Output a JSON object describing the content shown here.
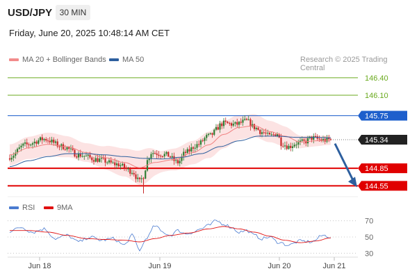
{
  "header": {
    "pair": "USD/JPY",
    "timeframe": "30 MIN",
    "datetime": "Friday, June 20, 2025 10:48:14 AM CET"
  },
  "legend": {
    "items": [
      {
        "label": "MA 20 + Bollinger Bands",
        "color": "#f28b8b"
      },
      {
        "label": "MA 50",
        "color": "#2d5f9e"
      }
    ],
    "credit": "Research © 2025 Trading Central"
  },
  "rsi_legend": {
    "items": [
      {
        "label": "RSI",
        "color": "#4a7bd0"
      },
      {
        "label": "9MA",
        "color": "#e01010"
      }
    ]
  },
  "chart_data": [
    {
      "type": "candlestick",
      "ylim": [
        144.4,
        146.6
      ],
      "x_ticks": [
        "Jun 18",
        "Jun 19",
        "Jun 20",
        "Jun 21"
      ],
      "last_price": 145.34,
      "levels": [
        {
          "value": 146.4,
          "label": "146.40",
          "kind": "target"
        },
        {
          "value": 146.1,
          "label": "146.10",
          "kind": "target"
        },
        {
          "value": 145.75,
          "label": "145.75",
          "kind": "pivot"
        },
        {
          "value": 144.85,
          "label": "144.85",
          "kind": "support"
        },
        {
          "value": 144.55,
          "label": "144.55",
          "kind": "support"
        }
      ],
      "colors": {
        "target": "#6aaa1e",
        "pivot": "#1e5fcc",
        "support": "#e00000",
        "last": "#222222",
        "up": "#2e7d32",
        "down": "#c62828"
      },
      "close_anchors": [
        [
          0,
          145.05
        ],
        [
          8,
          145.25
        ],
        [
          18,
          145.35
        ],
        [
          28,
          145.22
        ],
        [
          36,
          145.08
        ],
        [
          46,
          145.0
        ],
        [
          56,
          144.92
        ],
        [
          64,
          144.8
        ],
        [
          68,
          144.62
        ],
        [
          70,
          144.72
        ],
        [
          72,
          144.98
        ],
        [
          74,
          145.12
        ],
        [
          82,
          145.08
        ],
        [
          88,
          144.95
        ],
        [
          92,
          145.12
        ],
        [
          98,
          145.25
        ],
        [
          104,
          145.4
        ],
        [
          112,
          145.62
        ],
        [
          118,
          145.6
        ],
        [
          124,
          145.66
        ],
        [
          128,
          145.55
        ],
        [
          132,
          145.47
        ],
        [
          136,
          145.4
        ],
        [
          140,
          145.45
        ],
        [
          142,
          145.28
        ],
        [
          146,
          145.22
        ],
        [
          150,
          145.28
        ],
        [
          154,
          145.3
        ],
        [
          158,
          145.37
        ],
        [
          164,
          145.33
        ],
        [
          168,
          145.34
        ]
      ],
      "ma20_anchors": [
        [
          0,
          145.08
        ],
        [
          10,
          145.2
        ],
        [
          20,
          145.26
        ],
        [
          30,
          145.22
        ],
        [
          40,
          145.12
        ],
        [
          50,
          145.03
        ],
        [
          60,
          144.95
        ],
        [
          68,
          144.86
        ],
        [
          76,
          144.95
        ],
        [
          86,
          145.0
        ],
        [
          96,
          145.12
        ],
        [
          104,
          145.25
        ],
        [
          112,
          145.43
        ],
        [
          120,
          145.55
        ],
        [
          128,
          145.58
        ],
        [
          136,
          145.48
        ],
        [
          144,
          145.4
        ],
        [
          152,
          145.3
        ],
        [
          160,
          145.32
        ],
        [
          168,
          145.33
        ]
      ],
      "ma50_anchors": [
        [
          0,
          144.88
        ],
        [
          10,
          144.98
        ],
        [
          20,
          145.05
        ],
        [
          30,
          145.1
        ],
        [
          40,
          145.1
        ],
        [
          50,
          145.08
        ],
        [
          60,
          145.05
        ],
        [
          70,
          145.02
        ],
        [
          80,
          145.01
        ],
        [
          90,
          145.04
        ],
        [
          100,
          145.1
        ],
        [
          110,
          145.22
        ],
        [
          120,
          145.32
        ],
        [
          130,
          145.4
        ],
        [
          140,
          145.4
        ],
        [
          150,
          145.38
        ],
        [
          160,
          145.38
        ],
        [
          168,
          145.37
        ]
      ],
      "band_width_anchors": [
        [
          0,
          0.18
        ],
        [
          20,
          0.2
        ],
        [
          40,
          0.16
        ],
        [
          60,
          0.24
        ],
        [
          70,
          0.3
        ],
        [
          80,
          0.18
        ],
        [
          95,
          0.2
        ],
        [
          110,
          0.24
        ],
        [
          125,
          0.2
        ],
        [
          140,
          0.18
        ],
        [
          155,
          0.1
        ],
        [
          168,
          0.08
        ]
      ],
      "forecast_arrow": {
        "from": 145.32,
        "to": 144.55
      }
    },
    {
      "type": "line",
      "ylim": [
        20,
        80
      ],
      "y_ticks": [
        70,
        50,
        30
      ],
      "rsi_anchors": [
        [
          0,
          57
        ],
        [
          6,
          62
        ],
        [
          12,
          56
        ],
        [
          18,
          60
        ],
        [
          24,
          48
        ],
        [
          30,
          52
        ],
        [
          36,
          44
        ],
        [
          42,
          50
        ],
        [
          48,
          46
        ],
        [
          54,
          48
        ],
        [
          60,
          40
        ],
        [
          64,
          52
        ],
        [
          68,
          34
        ],
        [
          72,
          50
        ],
        [
          76,
          64
        ],
        [
          80,
          56
        ],
        [
          84,
          52
        ],
        [
          88,
          58
        ],
        [
          92,
          54
        ],
        [
          96,
          56
        ],
        [
          100,
          60
        ],
        [
          104,
          64
        ],
        [
          108,
          70
        ],
        [
          112,
          66
        ],
        [
          116,
          62
        ],
        [
          120,
          56
        ],
        [
          124,
          58
        ],
        [
          128,
          52
        ],
        [
          132,
          48
        ],
        [
          136,
          50
        ],
        [
          140,
          44
        ],
        [
          146,
          40
        ],
        [
          152,
          45
        ],
        [
          158,
          44
        ],
        [
          164,
          52
        ],
        [
          168,
          50
        ]
      ],
      "ma9_anchors": [
        [
          0,
          58
        ],
        [
          10,
          58
        ],
        [
          20,
          56
        ],
        [
          30,
          52
        ],
        [
          40,
          48
        ],
        [
          50,
          47
        ],
        [
          60,
          46
        ],
        [
          68,
          44
        ],
        [
          76,
          48
        ],
        [
          84,
          52
        ],
        [
          94,
          55
        ],
        [
          104,
          60
        ],
        [
          112,
          63
        ],
        [
          120,
          60
        ],
        [
          128,
          56
        ],
        [
          136,
          51
        ],
        [
          144,
          46
        ],
        [
          152,
          43
        ],
        [
          160,
          45
        ],
        [
          168,
          49
        ]
      ]
    }
  ]
}
